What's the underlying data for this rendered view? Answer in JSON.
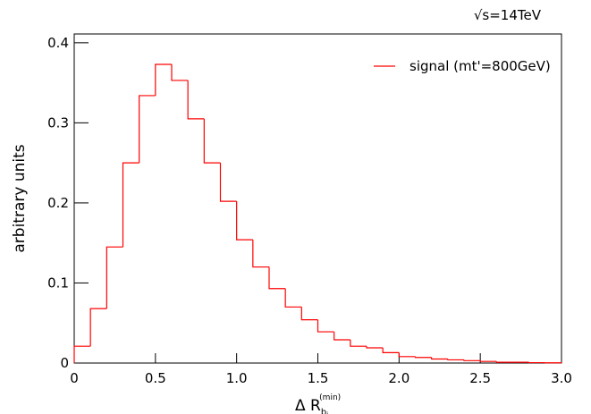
{
  "chart_data": {
    "type": "histogram",
    "annotation": "√s=14TeV",
    "x_label": {
      "text": "Δ R",
      "subscript": "b",
      "subscript2": "i",
      "superscript": "(min)"
    },
    "y_label": "arbitrary units",
    "bins": [
      0,
      0.1,
      0.2,
      0.3,
      0.4,
      0.5,
      0.6,
      0.7,
      0.8,
      0.9,
      1.0,
      1.1,
      1.2,
      1.3,
      1.4,
      1.5,
      1.6,
      1.7,
      1.8,
      1.9,
      2.0,
      2.1,
      2.2,
      2.3,
      2.4,
      2.5,
      2.6,
      2.7,
      2.8,
      2.9,
      3.0
    ],
    "series": [
      {
        "name": "signal (mt'=800GeV)",
        "color": "#ff0000",
        "values": [
          0.021,
          0.068,
          0.145,
          0.25,
          0.334,
          0.373,
          0.353,
          0.305,
          0.25,
          0.202,
          0.154,
          0.12,
          0.093,
          0.07,
          0.054,
          0.039,
          0.029,
          0.021,
          0.019,
          0.013,
          0.008,
          0.007,
          0.005,
          0.004,
          0.003,
          0.002,
          0.001,
          0.001,
          0.0005,
          0.0003
        ]
      }
    ],
    "xlim": [
      0,
      3.0
    ],
    "xticks": [
      0,
      0.5,
      {
        "value": 1,
        "label": "1.0"
      },
      1.5,
      {
        "value": 2,
        "label": "2.0"
      },
      2.5,
      {
        "value": 3,
        "label": "3.0"
      }
    ],
    "ylim": [
      0,
      0.411
    ],
    "yticks": [
      0,
      0.1,
      0.2,
      0.3,
      0.4
    ],
    "grid": false,
    "legend": "top-right"
  }
}
